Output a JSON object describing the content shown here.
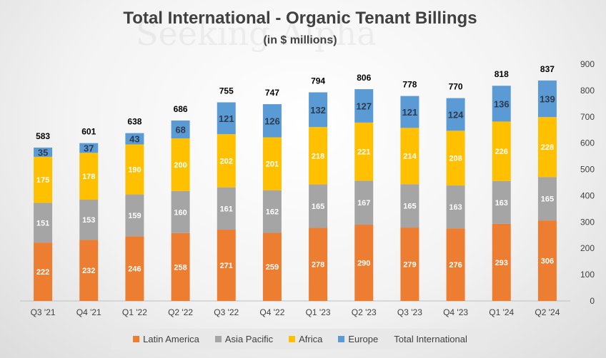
{
  "watermark": "Seeking Alpha",
  "chart_data": {
    "type": "bar",
    "stacked": true,
    "title": "Total International - Organic Tenant Billings",
    "subtitle": "(in $ millions)",
    "categories": [
      "Q3 '21",
      "Q4 '21",
      "Q1 '22",
      "Q2 '22",
      "Q3 '22",
      "Q4 '22",
      "Q1 '23",
      "Q2 '23",
      "Q3 '23",
      "Q4 '23",
      "Q1 '24",
      "Q2 '24"
    ],
    "series": [
      {
        "name": "Latin America",
        "color": "#ED7D31",
        "values": [
          222,
          232,
          246,
          258,
          271,
          259,
          278,
          290,
          279,
          276,
          293,
          306
        ]
      },
      {
        "name": "Asia Pacific",
        "color": "#A5A5A5",
        "values": [
          151,
          153,
          159,
          160,
          161,
          162,
          165,
          167,
          165,
          163,
          163,
          165
        ]
      },
      {
        "name": "Africa",
        "color": "#FFC000",
        "values": [
          175,
          178,
          190,
          200,
          202,
          201,
          218,
          221,
          214,
          208,
          226,
          228
        ]
      },
      {
        "name": "Europe",
        "color": "#5B9BD5",
        "values": [
          35,
          37,
          43,
          68,
          121,
          126,
          132,
          127,
          121,
          124,
          136,
          139
        ]
      }
    ],
    "totals": {
      "name": "Total International",
      "values": [
        583,
        601,
        638,
        686,
        755,
        747,
        794,
        806,
        778,
        770,
        818,
        837
      ]
    },
    "ylim": [
      0,
      900
    ],
    "yticks": [
      0,
      100,
      200,
      300,
      400,
      500,
      600,
      700,
      800,
      900
    ],
    "y_axis_side": "right",
    "grid": false,
    "legend_position": "bottom"
  }
}
